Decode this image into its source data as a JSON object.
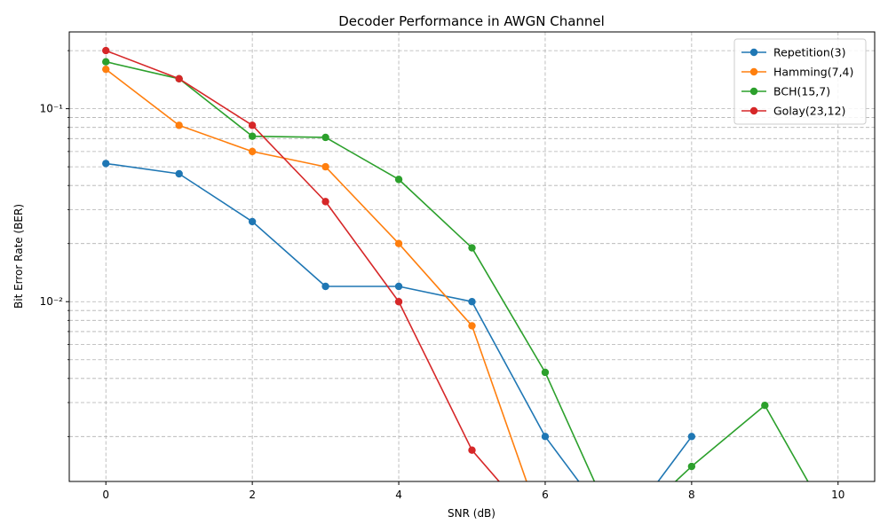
{
  "chart_data": {
    "type": "line",
    "title": "Decoder Performance in AWGN Channel",
    "xlabel": "SNR (dB)",
    "ylabel": "Bit Error Rate (BER)",
    "xlim": [
      -0.5,
      10.5
    ],
    "ylim": [
      0.00117,
      0.25
    ],
    "yscale": "log",
    "grid": true,
    "legend_position": "top-right",
    "x_ticks": [
      0,
      2,
      4,
      6,
      8,
      10
    ],
    "x_tick_labels": [
      "0",
      "2",
      "4",
      "6",
      "8",
      "10"
    ],
    "y_major_ticks": [
      0.01,
      0.1
    ],
    "y_major_tick_labels": [
      "10⁻²",
      "10⁻¹"
    ],
    "y_minor_ticks": [
      0.002,
      0.003,
      0.004,
      0.005,
      0.006,
      0.007,
      0.008,
      0.009,
      0.02,
      0.03,
      0.04,
      0.05,
      0.06,
      0.07,
      0.08,
      0.09,
      0.2
    ],
    "series": [
      {
        "name": "Repetition(3)",
        "color": "#1f77b4",
        "x": [
          0,
          1,
          2,
          3,
          4,
          5,
          6,
          7,
          8
        ],
        "y": [
          0.052,
          0.046,
          0.026,
          0.012,
          0.012,
          0.01,
          0.002,
          0,
          0.002
        ]
      },
      {
        "name": "Hamming(7,4)",
        "color": "#ff7f0e",
        "x": [
          0,
          1,
          2,
          3,
          4,
          5,
          6
        ],
        "y": [
          0.16,
          0.082,
          0.06,
          0.05,
          0.02,
          0.0075,
          0
        ]
      },
      {
        "name": "BCH(15,7)",
        "color": "#2ca02c",
        "x": [
          0,
          1,
          2,
          3,
          4,
          5,
          6,
          7,
          8,
          9,
          10
        ],
        "y": [
          0.175,
          0.143,
          0.072,
          0.071,
          0.043,
          0.019,
          0.0043,
          0,
          0.0014,
          0.0029,
          0
        ]
      },
      {
        "name": "Golay(23,12)",
        "color": "#d62728",
        "x": [
          0,
          1,
          2,
          3,
          4,
          5,
          6
        ],
        "y": [
          0.2,
          0.143,
          0.082,
          0.033,
          0.01,
          0.0017,
          0
        ]
      }
    ]
  }
}
